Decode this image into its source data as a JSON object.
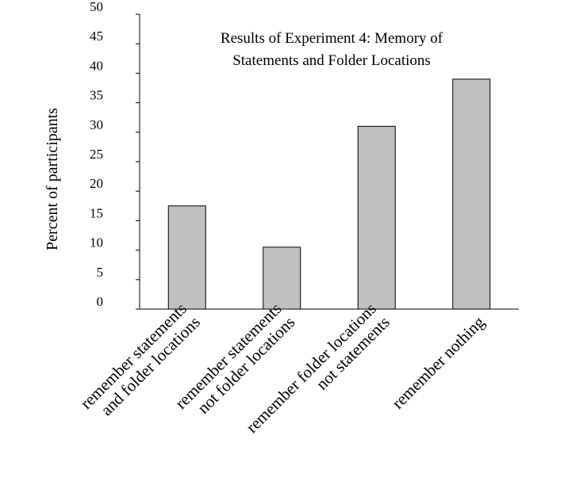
{
  "chart_data": {
    "type": "bar",
    "title_lines": [
      "Results of Experiment 4: Memory of",
      "Statements and Folder Locations"
    ],
    "ylabel": "Percent of participants",
    "xlabel": "",
    "ylim": [
      0,
      50
    ],
    "yticks": [
      0,
      5,
      10,
      15,
      20,
      25,
      30,
      35,
      40,
      45,
      50
    ],
    "ytick_labels": [
      "0",
      "5",
      "10",
      "15",
      "20",
      "25",
      "30",
      "35",
      "40",
      "45",
      "50"
    ],
    "categories": [
      [
        "remember statements",
        "and folder locations"
      ],
      [
        "remember statements",
        "not folder locations"
      ],
      [
        "remember folder locations",
        "not statements"
      ],
      [
        "remember nothing"
      ]
    ],
    "values": [
      17.5,
      10.5,
      31,
      39
    ],
    "bar_color": "#c0c0c0",
    "grid": false
  }
}
